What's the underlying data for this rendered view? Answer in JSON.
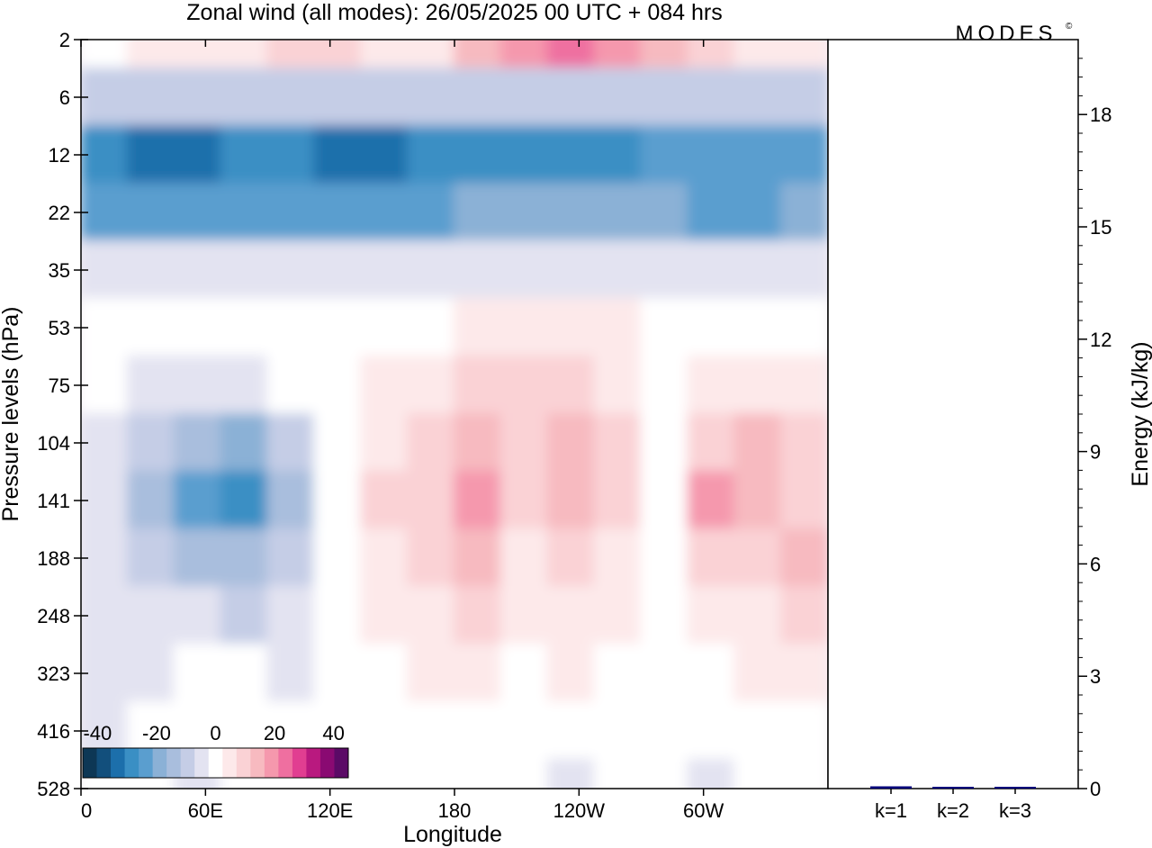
{
  "header": {
    "title": "Zonal wind (all modes):  26/05/2025  00 UTC  + 084 hrs",
    "logo_text": "MODES",
    "logo_mark": "©"
  },
  "chart_data": [
    {
      "type": "heatmap",
      "title": "Zonal wind (all modes):  26/05/2025  00 UTC  + 084 hrs",
      "xlabel": "Longitude",
      "ylabel": "Pressure levels (hPa)",
      "x_ticks": [
        "0",
        "60E",
        "120E",
        "180",
        "120W",
        "60W"
      ],
      "y_ticks": [
        "2",
        "6",
        "12",
        "22",
        "35",
        "53",
        "75",
        "104",
        "141",
        "188",
        "248",
        "323",
        "416",
        "528"
      ],
      "y_scale": "log (pressure, increasing downward)",
      "colorbar": {
        "tick_labels": [
          "-40",
          "-20",
          "0",
          "20",
          "40"
        ],
        "range": [
          -45,
          45
        ],
        "step": 5,
        "colors": [
          "#0d3755",
          "#124f7c",
          "#1c6fab",
          "#3a8fc4",
          "#5a9ecf",
          "#8bb1d6",
          "#a9bedd",
          "#c5cde6",
          "#e3e3f1",
          "#ffffff",
          "#fde9ea",
          "#fad2d5",
          "#f7bac0",
          "#f598ad",
          "#ef6fa0",
          "#e13e91",
          "#b9197f",
          "#8a0a72",
          "#5b0a66"
        ]
      },
      "field_values_ms": [
        [
          0,
          5,
          5,
          5,
          10,
          10,
          5,
          5,
          15,
          20,
          25,
          20,
          15,
          10,
          5,
          5
        ],
        [
          -10,
          -10,
          -10,
          -10,
          -10,
          -10,
          -10,
          -10,
          -10,
          -10,
          -10,
          -10,
          -10,
          -10,
          -10,
          -10
        ],
        [
          -30,
          -35,
          -35,
          -30,
          -30,
          -35,
          -35,
          -30,
          -30,
          -30,
          -30,
          -30,
          -25,
          -25,
          -25,
          -25
        ],
        [
          -25,
          -25,
          -25,
          -25,
          -25,
          -25,
          -25,
          -25,
          -20,
          -20,
          -20,
          -20,
          -20,
          -25,
          -25,
          -20
        ],
        [
          -5,
          -5,
          -5,
          -5,
          -5,
          -5,
          -5,
          -5,
          -5,
          -5,
          -5,
          -5,
          -5,
          -5,
          -5,
          -5
        ],
        [
          0,
          0,
          0,
          0,
          0,
          0,
          0,
          0,
          5,
          5,
          5,
          5,
          0,
          0,
          0,
          0
        ],
        [
          0,
          -5,
          -5,
          -5,
          0,
          0,
          5,
          5,
          10,
          10,
          10,
          5,
          0,
          5,
          5,
          5
        ],
        [
          -5,
          -10,
          -15,
          -20,
          -10,
          0,
          5,
          10,
          15,
          10,
          15,
          10,
          0,
          10,
          15,
          10
        ],
        [
          -5,
          -15,
          -25,
          -30,
          -15,
          0,
          10,
          10,
          20,
          10,
          15,
          10,
          0,
          20,
          15,
          10
        ],
        [
          -5,
          -10,
          -15,
          -15,
          -10,
          0,
          5,
          10,
          15,
          5,
          10,
          5,
          0,
          10,
          10,
          15
        ],
        [
          -5,
          -5,
          -5,
          -10,
          -5,
          0,
          5,
          5,
          10,
          5,
          5,
          5,
          0,
          5,
          5,
          10
        ],
        [
          -5,
          -5,
          0,
          0,
          -5,
          0,
          0,
          5,
          5,
          0,
          5,
          0,
          0,
          0,
          5,
          5
        ],
        [
          -5,
          0,
          0,
          0,
          0,
          0,
          0,
          0,
          0,
          0,
          0,
          0,
          0,
          0,
          0,
          0
        ],
        [
          0,
          0,
          -5,
          0,
          0,
          0,
          0,
          0,
          0,
          0,
          -5,
          0,
          0,
          -5,
          0,
          0
        ]
      ]
    },
    {
      "type": "bar",
      "ylabel": "Energy (kJ/kg)",
      "categories": [
        "k=1",
        "k=2",
        "k=3"
      ],
      "values": [
        0.06,
        0.03,
        0.03
      ],
      "y_ticks": [
        "0",
        "3",
        "6",
        "9",
        "12",
        "15",
        "18"
      ],
      "ylim": [
        0,
        20
      ],
      "bar_color": "#00007a"
    }
  ]
}
